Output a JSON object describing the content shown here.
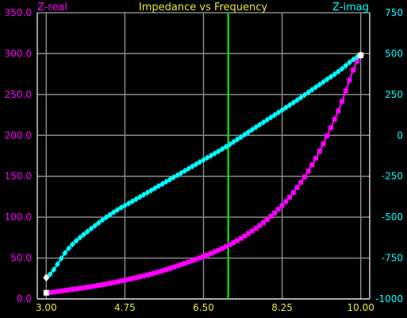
{
  "chart_data": {
    "type": "line",
    "title": "Impedance vs Frequency",
    "xlim": [
      2.8,
      10.2
    ],
    "x_ticks": [
      "3.00",
      "4.75",
      "6.50",
      "8.25",
      "10.00"
    ],
    "x_tick_values": [
      3.0,
      4.75,
      6.5,
      8.25,
      10.0
    ],
    "y_left": {
      "label": "Z-real",
      "lim": [
        0,
        350
      ],
      "ticks": [
        "0.0",
        "50.0",
        "100.0",
        "150.0",
        "200.0",
        "250.0",
        "300.0",
        "350.0"
      ],
      "tick_values": [
        0,
        50,
        100,
        150,
        200,
        250,
        300,
        350
      ]
    },
    "y_right": {
      "label": "Z-imag",
      "lim": [
        -1000,
        750
      ],
      "ticks": [
        "-1000",
        "-750",
        "-500",
        "-250",
        "0",
        "250",
        "500",
        "750"
      ],
      "tick_values": [
        -1000,
        -750,
        -500,
        -250,
        0,
        250,
        500,
        750
      ]
    },
    "cursor_x": 7.05,
    "grid": true,
    "series": [
      {
        "name": "Z-real",
        "axis": "left",
        "color": "#ff00ff",
        "marker": "square",
        "points": [
          [
            3.0,
            7.5
          ],
          [
            3.5,
            11.0
          ],
          [
            4.0,
            15.0
          ],
          [
            4.5,
            20.0
          ],
          [
            5.0,
            26.0
          ],
          [
            5.5,
            33.0
          ],
          [
            6.0,
            42.0
          ],
          [
            6.5,
            52.0
          ],
          [
            7.0,
            64.0
          ],
          [
            7.5,
            80.0
          ],
          [
            8.0,
            101.0
          ],
          [
            8.5,
            130.0
          ],
          [
            9.0,
            172.0
          ],
          [
            9.5,
            230.0
          ],
          [
            10.0,
            298.0
          ]
        ]
      },
      {
        "name": "Z-imag",
        "axis": "right",
        "color": "#00ffff",
        "marker": "diamond",
        "points": [
          [
            3.0,
            -870
          ],
          [
            3.5,
            -690
          ],
          [
            4.0,
            -570
          ],
          [
            4.5,
            -470
          ],
          [
            5.0,
            -390
          ],
          [
            5.5,
            -310
          ],
          [
            6.0,
            -230
          ],
          [
            6.5,
            -150
          ],
          [
            7.0,
            -70
          ],
          [
            7.5,
            20
          ],
          [
            8.0,
            110
          ],
          [
            8.5,
            200
          ],
          [
            9.0,
            295
          ],
          [
            9.5,
            390
          ],
          [
            10.0,
            490
          ]
        ]
      }
    ],
    "endpoint_markers": [
      {
        "series": "Z-real",
        "x": 3.0,
        "y": 7.5,
        "shape": "square",
        "color": "#ffffff"
      },
      {
        "series": "Z-real",
        "x": 10.0,
        "y": 298.0,
        "shape": "square",
        "color": "#ffffff"
      },
      {
        "series": "Z-imag",
        "x": 3.0,
        "y": -870,
        "shape": "diamond",
        "color": "#ffffff"
      },
      {
        "series": "Z-imag",
        "x": 10.0,
        "y": 490,
        "shape": "diamond",
        "color": "#ffffff"
      }
    ],
    "colors": {
      "background": "#000000",
      "grid": "#888888",
      "axis": "#cccccc",
      "left_text": "#ff00ff",
      "right_text": "#00ffff",
      "bottom_text": "#e8e830",
      "title_text": "#e8e830",
      "cursor": "#00ff00"
    }
  }
}
